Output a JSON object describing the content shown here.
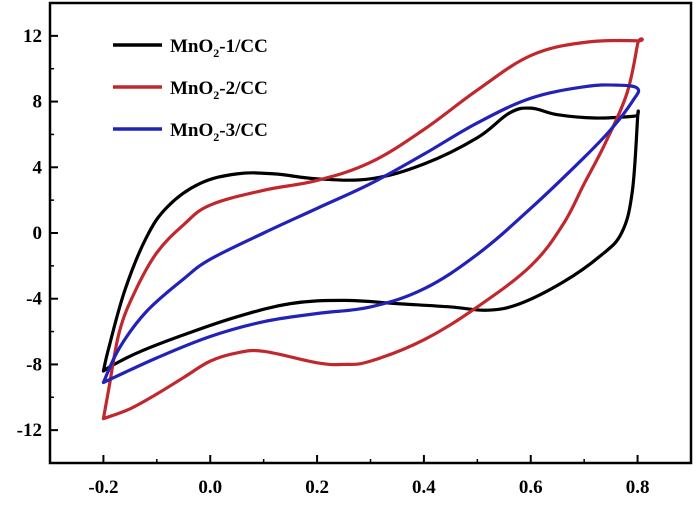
{
  "chart_data": {
    "type": "line",
    "title": "",
    "xlabel": "",
    "ylabel": "",
    "xlim": [
      -0.3,
      0.9
    ],
    "ylim": [
      -14,
      14
    ],
    "x_ticks": [
      -0.2,
      0.0,
      0.2,
      0.4,
      0.6,
      0.8
    ],
    "x_tick_labels": [
      "-0.2",
      "0.0",
      "0.2",
      "0.4",
      "0.6",
      "0.8"
    ],
    "y_ticks": [
      -12,
      -8,
      -4,
      0,
      4,
      8,
      12
    ],
    "y_tick_labels": [
      "-12",
      "-8",
      "-4",
      "0",
      "4",
      "8",
      "12"
    ],
    "grid": false,
    "legend_position": "top-left",
    "series": [
      {
        "name_main": "MnO",
        "name_sub": "2",
        "name_tail": "-1/CC",
        "color": "#000000",
        "points": [
          [
            -0.2,
            -8.4
          ],
          [
            -0.19,
            -7.0
          ],
          [
            -0.16,
            -3.5
          ],
          [
            -0.12,
            -0.3
          ],
          [
            -0.08,
            1.6
          ],
          [
            -0.02,
            3.0
          ],
          [
            0.05,
            3.6
          ],
          [
            0.12,
            3.6
          ],
          [
            0.2,
            3.3
          ],
          [
            0.3,
            3.3
          ],
          [
            0.4,
            4.2
          ],
          [
            0.5,
            5.8
          ],
          [
            0.56,
            7.3
          ],
          [
            0.6,
            7.6
          ],
          [
            0.65,
            7.2
          ],
          [
            0.72,
            7.0
          ],
          [
            0.79,
            7.1
          ],
          [
            0.8,
            7.2
          ],
          [
            0.8,
            7.0
          ],
          [
            0.79,
            2.5
          ],
          [
            0.77,
            0.0
          ],
          [
            0.73,
            -1.4
          ],
          [
            0.66,
            -3.0
          ],
          [
            0.58,
            -4.3
          ],
          [
            0.52,
            -4.7
          ],
          [
            0.45,
            -4.5
          ],
          [
            0.35,
            -4.3
          ],
          [
            0.25,
            -4.1
          ],
          [
            0.15,
            -4.3
          ],
          [
            0.05,
            -5.1
          ],
          [
            -0.05,
            -6.2
          ],
          [
            -0.13,
            -7.2
          ],
          [
            -0.18,
            -8.0
          ],
          [
            -0.2,
            -8.4
          ]
        ]
      },
      {
        "name_main": "MnO",
        "name_sub": "2",
        "name_tail": "-2/CC",
        "color": "#c0282d",
        "points": [
          [
            -0.2,
            -11.3
          ],
          [
            -0.19,
            -9.5
          ],
          [
            -0.17,
            -6.0
          ],
          [
            -0.14,
            -3.5
          ],
          [
            -0.1,
            -1.2
          ],
          [
            -0.05,
            0.5
          ],
          [
            0.0,
            1.7
          ],
          [
            0.1,
            2.6
          ],
          [
            0.2,
            3.2
          ],
          [
            0.3,
            4.3
          ],
          [
            0.4,
            6.3
          ],
          [
            0.5,
            8.7
          ],
          [
            0.6,
            10.8
          ],
          [
            0.7,
            11.6
          ],
          [
            0.8,
            11.7
          ],
          [
            0.8,
            11.5
          ],
          [
            0.78,
            8.5
          ],
          [
            0.74,
            5.5
          ],
          [
            0.7,
            3.0
          ],
          [
            0.66,
            0.5
          ],
          [
            0.6,
            -2.0
          ],
          [
            0.5,
            -4.5
          ],
          [
            0.4,
            -6.5
          ],
          [
            0.3,
            -7.8
          ],
          [
            0.25,
            -8.0
          ],
          [
            0.2,
            -7.9
          ],
          [
            0.1,
            -7.2
          ],
          [
            0.05,
            -7.3
          ],
          [
            0.0,
            -7.8
          ],
          [
            -0.05,
            -8.8
          ],
          [
            -0.1,
            -9.8
          ],
          [
            -0.15,
            -10.7
          ],
          [
            -0.2,
            -11.3
          ]
        ]
      },
      {
        "name_main": "MnO",
        "name_sub": "2",
        "name_tail": "-3/CC",
        "color": "#2222b8",
        "points": [
          [
            -0.2,
            -9.1
          ],
          [
            -0.17,
            -7.0
          ],
          [
            -0.12,
            -4.8
          ],
          [
            -0.05,
            -2.8
          ],
          [
            0.0,
            -1.6
          ],
          [
            0.1,
            0.0
          ],
          [
            0.2,
            1.5
          ],
          [
            0.3,
            3.0
          ],
          [
            0.4,
            4.8
          ],
          [
            0.5,
            6.7
          ],
          [
            0.6,
            8.2
          ],
          [
            0.7,
            8.9
          ],
          [
            0.76,
            9.0
          ],
          [
            0.8,
            8.8
          ],
          [
            0.79,
            8.0
          ],
          [
            0.75,
            6.3
          ],
          [
            0.7,
            4.6
          ],
          [
            0.6,
            1.5
          ],
          [
            0.5,
            -1.3
          ],
          [
            0.4,
            -3.4
          ],
          [
            0.3,
            -4.5
          ],
          [
            0.2,
            -4.9
          ],
          [
            0.1,
            -5.4
          ],
          [
            0.0,
            -6.3
          ],
          [
            -0.1,
            -7.6
          ],
          [
            -0.2,
            -9.1
          ]
        ]
      }
    ]
  }
}
